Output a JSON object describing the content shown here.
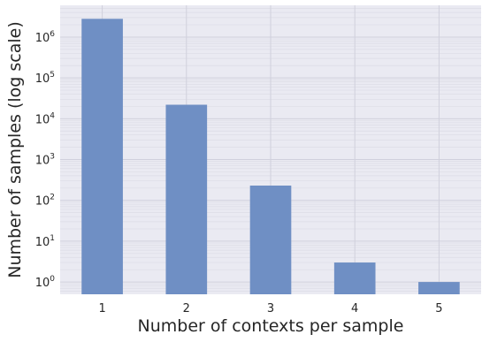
{
  "chart_data": {
    "type": "bar",
    "title": "",
    "xlabel": "Number of contexts per sample",
    "ylabel": "Number of samples (log scale)",
    "y_scale": "log",
    "categories": [
      "1",
      "2",
      "3",
      "4",
      "5"
    ],
    "values": [
      2800000,
      22000,
      230,
      3,
      1
    ],
    "ylim": [
      0.5,
      6000000
    ],
    "y_ticks": [
      1,
      10,
      100,
      1000,
      10000,
      100000,
      1000000
    ],
    "y_tick_labels": [
      {
        "base": "10",
        "exp": "0"
      },
      {
        "base": "10",
        "exp": "1"
      },
      {
        "base": "10",
        "exp": "2"
      },
      {
        "base": "10",
        "exp": "3"
      },
      {
        "base": "10",
        "exp": "4"
      },
      {
        "base": "10",
        "exp": "5"
      },
      {
        "base": "10",
        "exp": "6"
      }
    ],
    "grid": true,
    "colors": {
      "bar": "#6f8fc4",
      "background": "#eaeaf2",
      "grid": "#d0d0dc",
      "grid_minor": "#dcdce6"
    }
  }
}
